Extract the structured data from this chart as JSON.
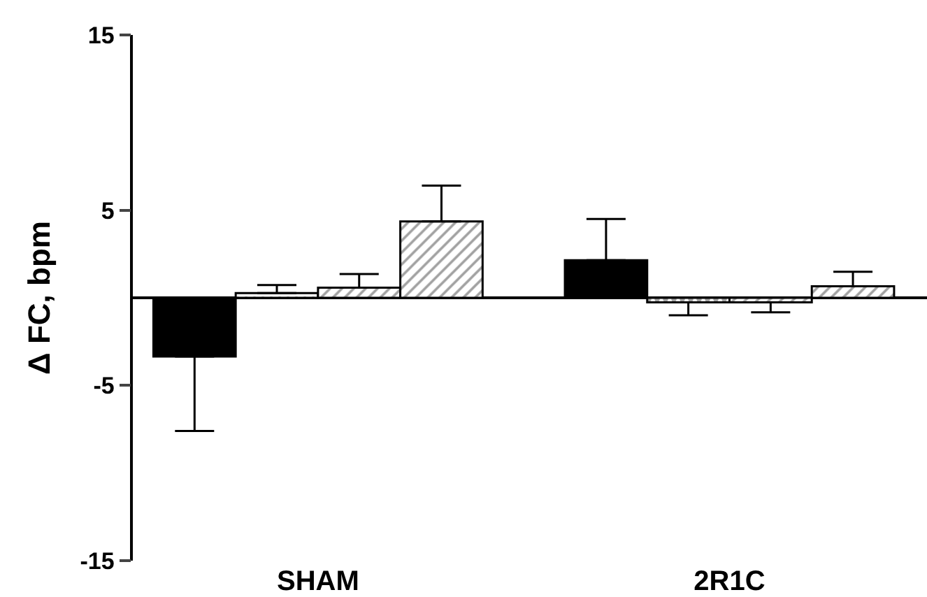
{
  "chart_data": {
    "type": "bar",
    "ylabel": "Δ FC, bpm",
    "categories": [
      "SHAM",
      "2R1C"
    ],
    "series": [
      {
        "color": "#000000",
        "values": [
          -3.35,
          2.14
        ],
        "errors": [
          [
            -7.6,
            -3.35
          ],
          [
            2.14,
            4.5
          ]
        ]
      },
      {
        "values": [
          0.27,
          -0.26
        ],
        "errors": [
          [
            0.27,
            0.73
          ],
          [
            -1.0,
            -0.26
          ]
        ]
      },
      {
        "values": [
          0.58,
          -0.26
        ],
        "errors": [
          [
            0.58,
            1.36
          ],
          [
            -0.83,
            -0.26
          ]
        ]
      },
      {
        "values": [
          4.36,
          0.66
        ],
        "errors": [
          [
            4.36,
            6.4
          ],
          [
            0.66,
            1.49
          ]
        ]
      }
    ],
    "ylim": [
      -15,
      15
    ],
    "yticks": [
      -15,
      -5,
      5,
      15
    ]
  }
}
